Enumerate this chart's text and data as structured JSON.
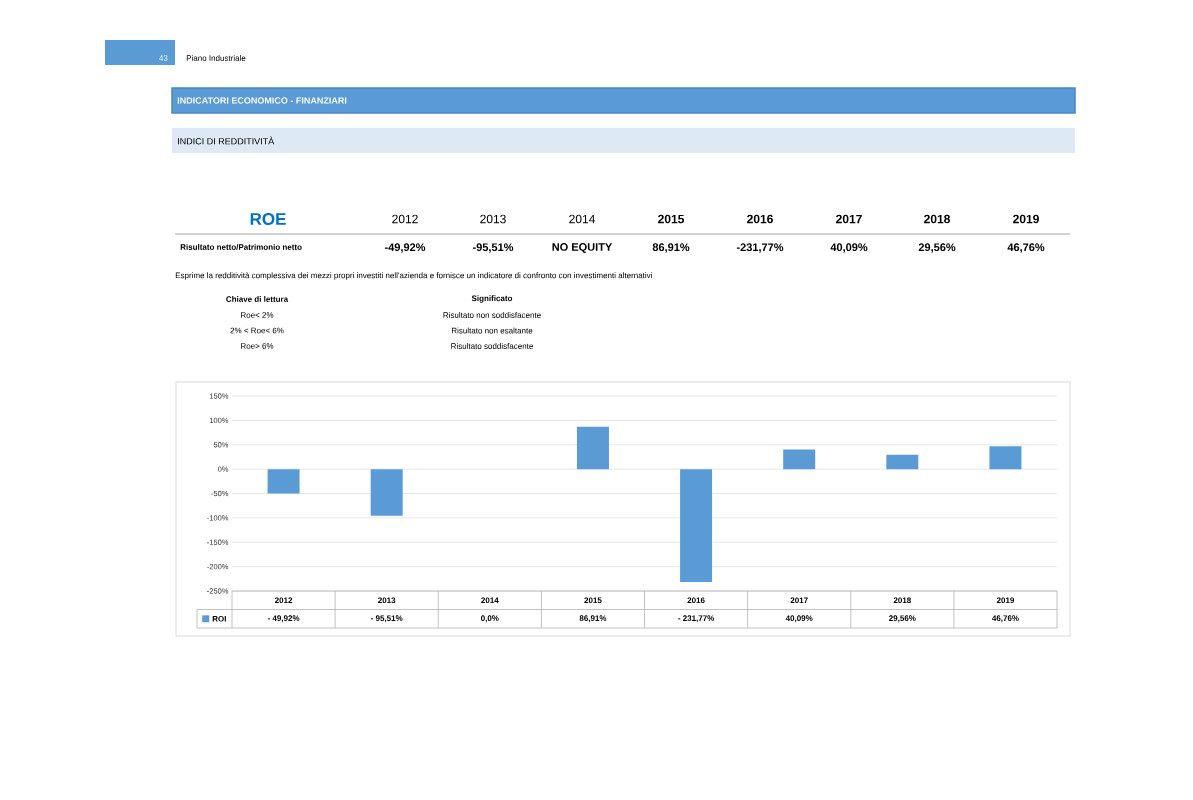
{
  "chart_data": {
    "type": "bar",
    "categories": [
      "2012",
      "2013",
      "2014",
      "2015",
      "2016",
      "2017",
      "2018",
      "2019"
    ],
    "series": [
      {
        "name": "ROI",
        "color": "#5b9bd5",
        "values": [
          -49.92,
          -95.51,
          0,
          86.91,
          -231.77,
          40.09,
          29.56,
          46.76
        ],
        "value_labels": [
          "- 49,92%",
          "- 95,51%",
          "0,0%",
          "86,91%",
          "- 231,77%",
          "40,09%",
          "29,56%",
          "46,76%"
        ]
      }
    ],
    "ylim": [
      -250,
      150
    ],
    "yticks": [
      {
        "value": -250,
        "label": "-250%"
      },
      {
        "value": -200,
        "label": "-200%"
      },
      {
        "value": -150,
        "label": "-150%"
      },
      {
        "value": -100,
        "label": "-100%"
      },
      {
        "value": -50,
        "label": "-50%"
      },
      {
        "value": 0,
        "label": "0%"
      },
      {
        "value": 50,
        "label": "50%"
      },
      {
        "value": 100,
        "label": "100%"
      },
      {
        "value": 150,
        "label": "150%"
      }
    ],
    "grid": "y",
    "legend": "bottom",
    "annotations": [
      "43",
      "Piano Industriale",
      "INDICATORI ECONOMICO - FINANZIARI",
      "INDICI DI REDDITIVITÀ",
      "ROE",
      "Risultato netto/Patrimonio netto",
      "-49,92%",
      "-95,51%",
      "NO EQUITY",
      "86,91%",
      "-231,77%",
      "40,09%",
      "29,56%",
      "46,76%",
      "Esprime la redditività complessiva dei mezzi propri investiti nell'azienda e fornisce un indicatore di confronto con investimenti alternativi",
      "Chiave di lettura",
      "Significato",
      "Roe< 2%",
      "Risultato non soddisfacente",
      "2% < Roe< 6%",
      "Risultato non esaltante",
      "Roe> 6%",
      "Risultato soddisfacente"
    ]
  }
}
